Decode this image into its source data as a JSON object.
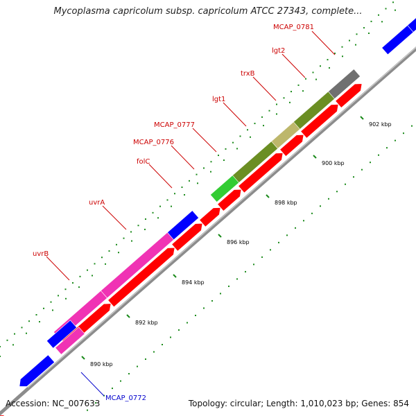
{
  "title": "Mycoplasma capricolum subsp. capricolum ATCC 27343, complete...",
  "footer": {
    "accession": "Accession: NC_007633",
    "summary": "Topology: circular; Length: 1,010,023 bp; Genes: 854"
  },
  "colors": {
    "backbone": "#8c8c8c",
    "cds": "#ff0000",
    "tick": "#1a8a1a",
    "label_red": "#cc0000",
    "label_blue": "#0000cc"
  },
  "kbp_ticks": [
    "890 kbp",
    "892 kbp",
    "894 kbp",
    "896 kbp",
    "898 kbp",
    "900 kbp",
    "902 kbp"
  ],
  "genes": [
    {
      "name": "uvrB",
      "color": "#f033b4"
    },
    {
      "name": "uvrA",
      "color": "#f033b4"
    },
    {
      "name": "folC",
      "color": "#0000ff"
    },
    {
      "name": "MCAP_0776",
      "color": "#ff0000"
    },
    {
      "name": "MCAP_0777",
      "color": "#33cc33"
    },
    {
      "name": "lgt1",
      "color": "#6b8e23"
    },
    {
      "name": "trxB",
      "color": "#bdb76b"
    },
    {
      "name": "lgt2",
      "color": "#6b8e23"
    },
    {
      "name": "MCAP_0781",
      "color": "#707070"
    },
    {
      "name": "MCAP_0772",
      "color": "#f033b4"
    }
  ]
}
